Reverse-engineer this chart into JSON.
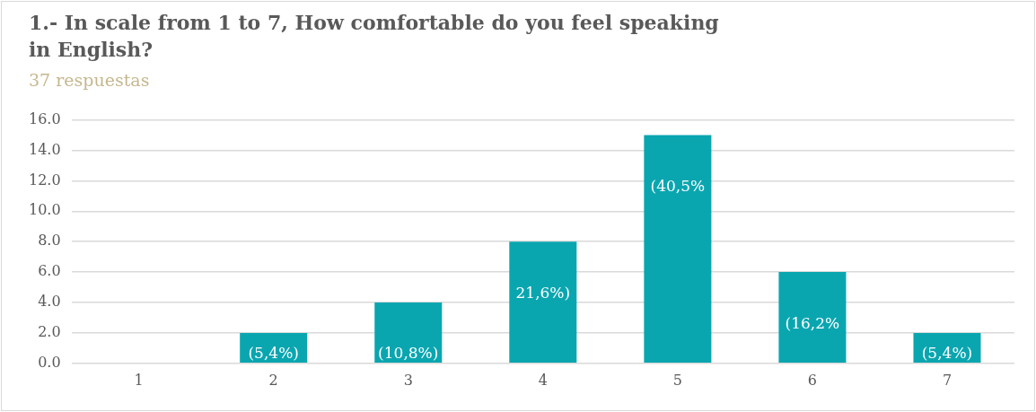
{
  "chart_data": {
    "type": "bar",
    "title": "1.- In scale from 1 to 7, How comfortable do you feel speaking in English?",
    "subtitle": "37 respuestas",
    "categories": [
      "1",
      "2",
      "3",
      "4",
      "5",
      "6",
      "7"
    ],
    "values": [
      0,
      2,
      4,
      8,
      15,
      6,
      2
    ],
    "color": "#0aa6b0",
    "annotations": [
      {
        "text": "(5,4%)",
        "x": "2",
        "y": 2
      },
      {
        "text": "(10,8%)",
        "x": "3",
        "y": 4
      },
      {
        "text": "21,6%)",
        "x": "4",
        "y": 8
      },
      {
        "text": "(40,5%",
        "x": "5",
        "y": 15
      },
      {
        "text": "(16,2%",
        "x": "6",
        "y": 6
      },
      {
        "text": "(5,4%)",
        "x": "7",
        "y": 2
      }
    ],
    "ylim": [
      0,
      16
    ],
    "yticks": [
      {
        "value": 0,
        "label": "0.0"
      },
      {
        "value": 2,
        "label": "2.0"
      },
      {
        "value": 4,
        "label": "4.0"
      },
      {
        "value": 6,
        "label": "6.0"
      },
      {
        "value": 8,
        "label": "8.0"
      },
      {
        "value": 10,
        "label": "10.0"
      },
      {
        "value": 12,
        "label": "12.0"
      },
      {
        "value": 14,
        "label": "14.0"
      },
      {
        "value": 16,
        "label": "16.0"
      }
    ],
    "grid": "y",
    "legend": false
  }
}
